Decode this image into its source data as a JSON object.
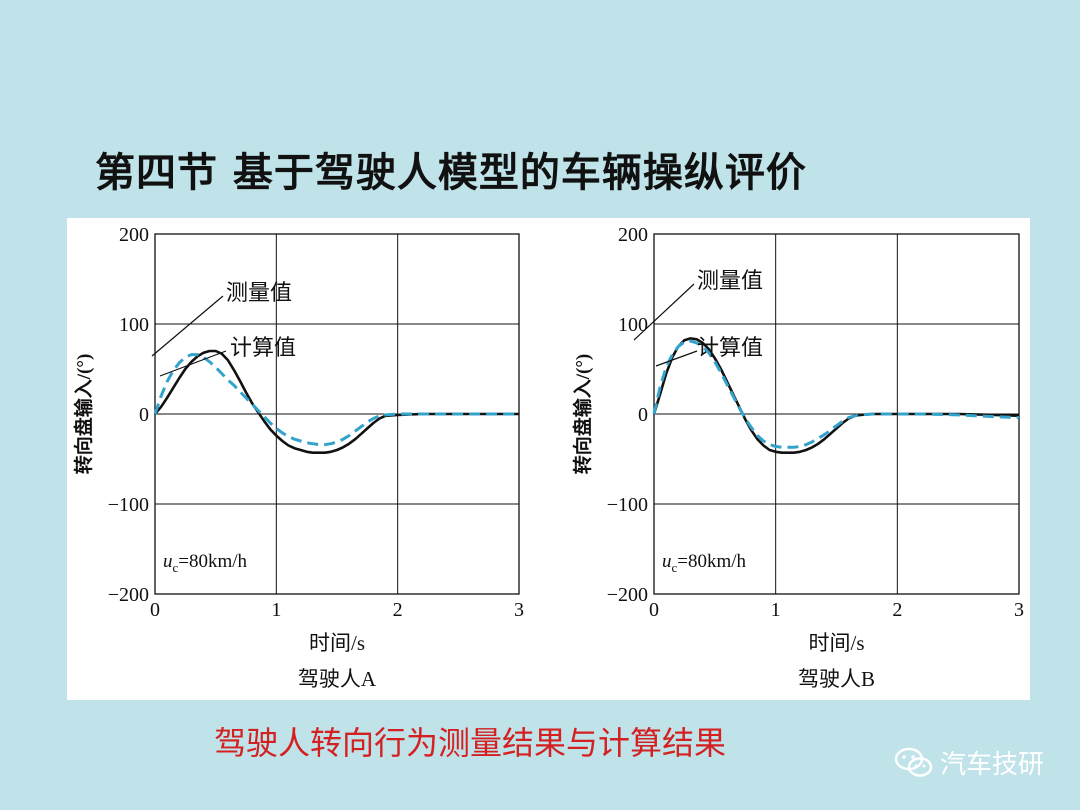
{
  "slide": {
    "title": "第四节   基于驾驶人模型的车辆操纵评价",
    "caption": "驾驶人转向行为测量结果与计算结果",
    "watermark": "汽车技研"
  },
  "chart_data": [
    {
      "type": "line",
      "ylabel": "转向盘输入/(°)",
      "xlabel": "时间/s",
      "subtitle": "驾驶人A",
      "speed_label": "=80km/h",
      "x_ticks": [
        "0",
        "1",
        "2",
        "3"
      ],
      "y_ticks": [
        "200",
        "100",
        "0",
        "−100",
        "−200"
      ],
      "xlim": [
        0,
        3
      ],
      "ylim": [
        -200,
        200
      ],
      "grid": true,
      "annotations": [
        "测量值",
        "计算值"
      ],
      "series": [
        {
          "name": "测量值",
          "color": "#111111",
          "dashed": false,
          "x": [
            0,
            0.05,
            0.1,
            0.15,
            0.2,
            0.25,
            0.3,
            0.35,
            0.4,
            0.45,
            0.5,
            0.55,
            0.6,
            0.65,
            0.7,
            0.75,
            0.8,
            0.85,
            0.9,
            0.95,
            1.0,
            1.05,
            1.1,
            1.15,
            1.2,
            1.25,
            1.3,
            1.35,
            1.4,
            1.45,
            1.5,
            1.55,
            1.6,
            1.65,
            1.7,
            1.75,
            1.8,
            1.85,
            1.9,
            2.0,
            2.2,
            2.5,
            2.8,
            3.0
          ],
          "y": [
            0,
            8,
            18,
            29,
            40,
            50,
            58,
            64,
            68,
            70,
            70,
            67,
            60,
            49,
            37,
            24,
            12,
            2,
            -8,
            -17,
            -24,
            -30,
            -35,
            -38,
            -40,
            -42,
            -43,
            -43,
            -43,
            -42,
            -40,
            -37,
            -33,
            -28,
            -22,
            -16,
            -10,
            -5,
            -2,
            -1,
            0,
            0,
            0,
            0
          ]
        },
        {
          "name": "计算值",
          "color": "#33a3cc",
          "dashed": true,
          "x": [
            0,
            0.05,
            0.1,
            0.15,
            0.2,
            0.25,
            0.3,
            0.35,
            0.4,
            0.45,
            0.5,
            0.55,
            0.6,
            0.65,
            0.7,
            0.75,
            0.8,
            0.85,
            0.9,
            0.95,
            1.0,
            1.05,
            1.1,
            1.15,
            1.2,
            1.25,
            1.3,
            1.35,
            1.4,
            1.45,
            1.5,
            1.55,
            1.6,
            1.65,
            1.7,
            1.75,
            1.8,
            1.85,
            1.9,
            2.0,
            2.2,
            2.5,
            2.8,
            3.0
          ],
          "y": [
            0,
            20,
            36,
            48,
            57,
            63,
            66,
            66,
            63,
            58,
            52,
            45,
            38,
            32,
            25,
            18,
            11,
            4,
            -3,
            -10,
            -16,
            -21,
            -25,
            -28,
            -30,
            -32,
            -33,
            -34,
            -34,
            -33,
            -31,
            -28,
            -24,
            -19,
            -14,
            -9,
            -5,
            -2,
            -1,
            0,
            0,
            0,
            0,
            0
          ]
        }
      ]
    },
    {
      "type": "line",
      "ylabel": "转向盘输入/(°)",
      "xlabel": "时间/s",
      "subtitle": "驾驶人B",
      "speed_label": "=80km/h",
      "x_ticks": [
        "0",
        "1",
        "2",
        "3"
      ],
      "y_ticks": [
        "200",
        "100",
        "0",
        "−100",
        "−200"
      ],
      "xlim": [
        0,
        3
      ],
      "ylim": [
        -200,
        200
      ],
      "grid": true,
      "annotations": [
        "测量值",
        "计算值"
      ],
      "series": [
        {
          "name": "测量值",
          "color": "#111111",
          "dashed": false,
          "x": [
            0,
            0.05,
            0.1,
            0.15,
            0.2,
            0.25,
            0.3,
            0.35,
            0.4,
            0.45,
            0.5,
            0.55,
            0.6,
            0.65,
            0.7,
            0.75,
            0.8,
            0.85,
            0.9,
            0.95,
            1.0,
            1.05,
            1.1,
            1.15,
            1.2,
            1.25,
            1.3,
            1.35,
            1.4,
            1.45,
            1.5,
            1.55,
            1.6,
            1.65,
            1.7,
            1.8,
            2.0,
            2.2,
            2.5,
            2.8,
            3.0
          ],
          "y": [
            0,
            22,
            45,
            63,
            75,
            82,
            84,
            83,
            79,
            72,
            62,
            50,
            36,
            22,
            8,
            -6,
            -18,
            -28,
            -35,
            -40,
            -42,
            -43,
            -43,
            -43,
            -42,
            -40,
            -37,
            -33,
            -28,
            -22,
            -16,
            -10,
            -5,
            -2,
            -1,
            0,
            0,
            0,
            0,
            -1,
            -2
          ]
        },
        {
          "name": "计算值",
          "color": "#33a3cc",
          "dashed": true,
          "x": [
            0,
            0.05,
            0.1,
            0.15,
            0.2,
            0.25,
            0.3,
            0.35,
            0.4,
            0.45,
            0.5,
            0.55,
            0.6,
            0.65,
            0.7,
            0.75,
            0.8,
            0.85,
            0.9,
            0.95,
            1.0,
            1.05,
            1.1,
            1.15,
            1.2,
            1.25,
            1.3,
            1.35,
            1.4,
            1.45,
            1.5,
            1.55,
            1.6,
            1.65,
            1.7,
            1.8,
            2.0,
            2.2,
            2.5,
            2.8,
            3.0
          ],
          "y": [
            0,
            30,
            52,
            66,
            75,
            80,
            81,
            79,
            75,
            68,
            58,
            46,
            33,
            20,
            7,
            -5,
            -15,
            -24,
            -30,
            -34,
            -36,
            -37,
            -37,
            -37,
            -36,
            -34,
            -31,
            -27,
            -23,
            -18,
            -13,
            -8,
            -4,
            -2,
            -1,
            0,
            0,
            0,
            -1,
            -3,
            -4
          ]
        }
      ]
    }
  ]
}
